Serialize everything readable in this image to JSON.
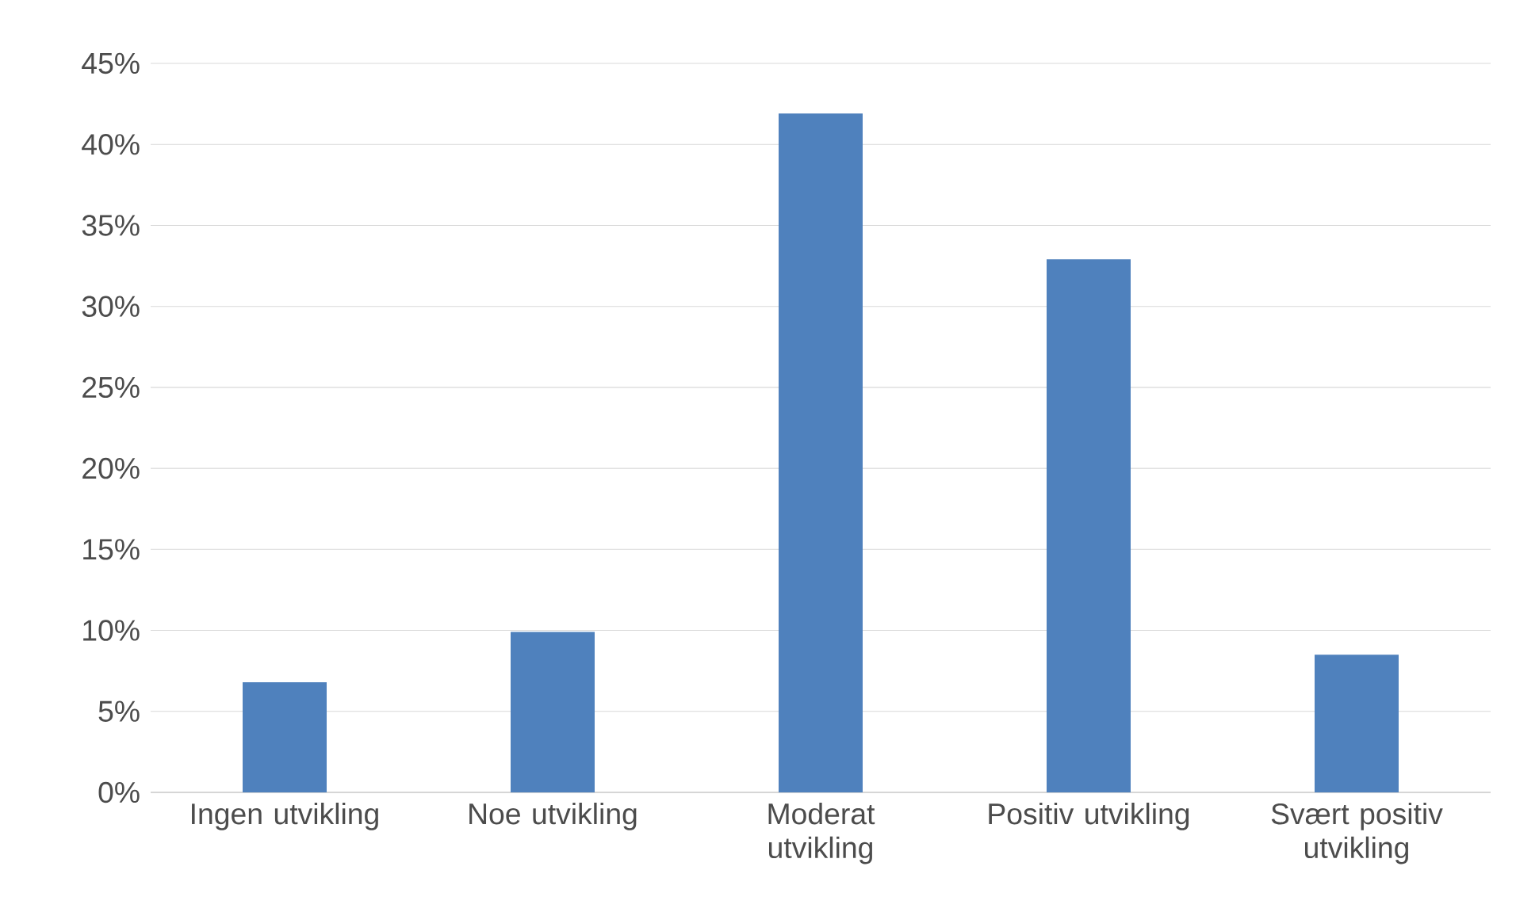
{
  "chart_data": {
    "type": "bar",
    "categories": [
      "Ingen utvikling",
      "Noe utvikling",
      "Moderat utvikling",
      "Positiv utvikling",
      "Svært positiv utvikling"
    ],
    "values": [
      6.8,
      9.9,
      41.9,
      32.9,
      8.5
    ],
    "color": "#4f81bd",
    "ylim": [
      0,
      45
    ],
    "yticks": [
      {
        "value": 0,
        "label": "0%"
      },
      {
        "value": 5,
        "label": "5%"
      },
      {
        "value": 10,
        "label": "10%"
      },
      {
        "value": 15,
        "label": "15%"
      },
      {
        "value": 20,
        "label": "20%"
      },
      {
        "value": 25,
        "label": "25%"
      },
      {
        "value": 30,
        "label": "30%"
      },
      {
        "value": 35,
        "label": "35%"
      },
      {
        "value": 40,
        "label": "40%"
      },
      {
        "value": 45,
        "label": "45%"
      }
    ],
    "grid": "y"
  }
}
